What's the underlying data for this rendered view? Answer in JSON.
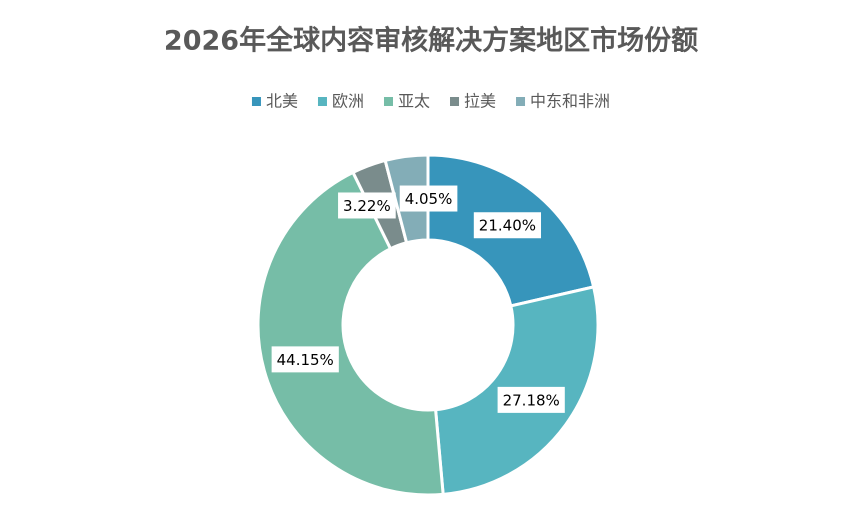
{
  "chart_data": {
    "type": "donut",
    "title": "2026年全球内容审核解决方案地区市场份额",
    "series": [
      {
        "name": "北美",
        "color": "#3795bb"
      },
      {
        "name": "欧洲",
        "color": "#57b5c0"
      },
      {
        "name": "亚太",
        "color": "#76bda7"
      },
      {
        "name": "拉美",
        "color": "#7a8c8c"
      },
      {
        "name": "中东和非洲",
        "color": "#83adb7"
      }
    ],
    "values": [
      21.4,
      27.18,
      44.15,
      3.22,
      4.05
    ],
    "value_labels": [
      "21.40%",
      "27.18%",
      "44.15%",
      "3.22%",
      "4.05%"
    ],
    "legend": "top"
  }
}
